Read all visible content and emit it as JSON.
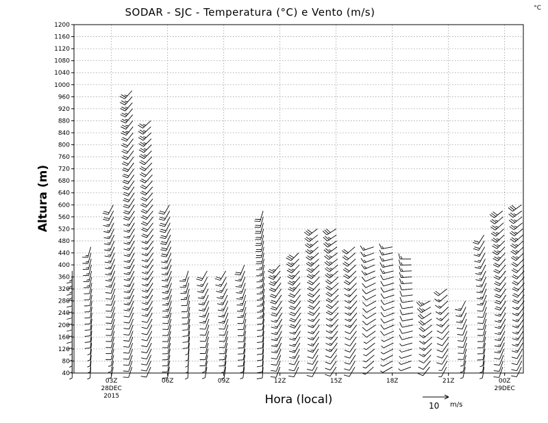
{
  "chart_data": {
    "type": "wind-barb-time-height",
    "title": "SODAR - SJC - Temperatura (°C) e Vento (m/s)",
    "corner_label": "°C",
    "ylabel": "Altura (m)",
    "xlabel": "Hora (local)",
    "ylim": [
      40,
      1200
    ],
    "y_ticks": [
      40,
      80,
      120,
      160,
      200,
      240,
      280,
      320,
      360,
      400,
      440,
      480,
      520,
      560,
      600,
      640,
      680,
      720,
      760,
      800,
      840,
      880,
      920,
      960,
      1000,
      1040,
      1080,
      1120,
      1160,
      1200
    ],
    "xlim_hours": [
      0,
      24
    ],
    "x_ticks": [
      {
        "hour": 2,
        "label": "03Z",
        "sub1": "28DEC",
        "sub2": "2015"
      },
      {
        "hour": 5,
        "label": "06Z",
        "sub1": "",
        "sub2": ""
      },
      {
        "hour": 8,
        "label": "09Z",
        "sub1": "",
        "sub2": ""
      },
      {
        "hour": 11,
        "label": "12Z",
        "sub1": "",
        "sub2": ""
      },
      {
        "hour": 14,
        "label": "15Z",
        "sub1": "",
        "sub2": ""
      },
      {
        "hour": 17,
        "label": "18Z",
        "sub1": "",
        "sub2": ""
      },
      {
        "hour": 20,
        "label": "21Z",
        "sub1": "",
        "sub2": ""
      },
      {
        "hour": 23,
        "label": "00Z",
        "sub1": "29DEC",
        "sub2": ""
      }
    ],
    "grid": true,
    "scale_vector": {
      "value": "10",
      "unit": "m/s"
    },
    "profiles": [
      {
        "hour": -0.1,
        "top": 390,
        "dir": 180,
        "spd": 5,
        "curve": 0.0
      },
      {
        "hour": 0.9,
        "top": 460,
        "dir": 190,
        "spd": 5,
        "curve": 0.3
      },
      {
        "hour": 2.1,
        "top": 600,
        "dir": 200,
        "spd": 6,
        "curve": 0.4
      },
      {
        "hour": 3.1,
        "top": 980,
        "dir": 210,
        "spd": 8,
        "curve": 0.6
      },
      {
        "hour": 4.1,
        "top": 880,
        "dir": 215,
        "spd": 8,
        "curve": 0.6
      },
      {
        "hour": 5.1,
        "top": 600,
        "dir": 200,
        "spd": 7,
        "curve": 0.5
      },
      {
        "hour": 6.1,
        "top": 390,
        "dir": 190,
        "spd": 5,
        "curve": 0.4
      },
      {
        "hour": 7.1,
        "top": 390,
        "dir": 200,
        "spd": 6,
        "curve": 0.5
      },
      {
        "hour": 8.1,
        "top": 390,
        "dir": 200,
        "spd": 6,
        "curve": 0.6
      },
      {
        "hour": 9.1,
        "top": 410,
        "dir": 195,
        "spd": 6,
        "curve": 0.4
      },
      {
        "hour": 10.1,
        "top": 580,
        "dir": 190,
        "spd": 7,
        "curve": 0.3
      },
      {
        "hour": 11.0,
        "top": 400,
        "dir": 210,
        "spd": 8,
        "curve": 0.5
      },
      {
        "hour": 12.0,
        "top": 440,
        "dir": 215,
        "spd": 9,
        "curve": 0.5
      },
      {
        "hour": 13.0,
        "top": 520,
        "dir": 220,
        "spd": 9,
        "curve": 0.6
      },
      {
        "hour": 14.0,
        "top": 520,
        "dir": 225,
        "spd": 9,
        "curve": 0.6
      },
      {
        "hour": 15.0,
        "top": 470,
        "dir": 220,
        "spd": 7,
        "curve": 0.5
      },
      {
        "hour": 16.0,
        "top": 470,
        "dir": 240,
        "spd": 5,
        "curve": 0.6
      },
      {
        "hour": 17.0,
        "top": 470,
        "dir": 250,
        "spd": 5,
        "curve": 0.5
      },
      {
        "hour": 18.0,
        "top": 420,
        "dir": 260,
        "spd": 5,
        "curve": 0.5
      },
      {
        "hour": 19.0,
        "top": 290,
        "dir": 230,
        "spd": 8,
        "curve": 0.6
      },
      {
        "hour": 19.9,
        "top": 330,
        "dir": 220,
        "spd": 6,
        "curve": 0.6
      },
      {
        "hour": 20.9,
        "top": 290,
        "dir": 200,
        "spd": 5,
        "curve": 0.4
      },
      {
        "hour": 21.9,
        "top": 500,
        "dir": 200,
        "spd": 6,
        "curve": 0.6
      },
      {
        "hour": 22.9,
        "top": 580,
        "dir": 215,
        "spd": 9,
        "curve": 0.8
      },
      {
        "hour": 23.9,
        "top": 600,
        "dir": 220,
        "spd": 9,
        "curve": 0.7
      }
    ]
  }
}
